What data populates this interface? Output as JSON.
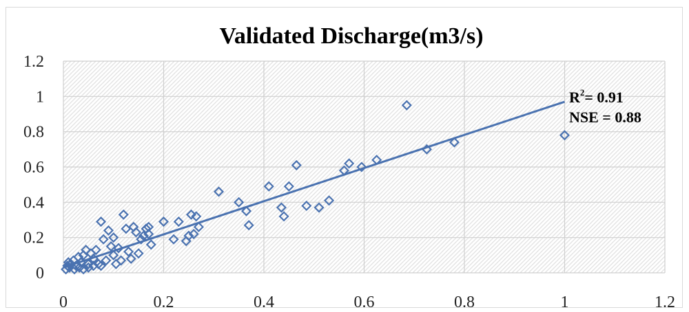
{
  "chart_data": {
    "type": "scatter",
    "title": "Validated Discharge(m3/s)",
    "xlabel": "",
    "ylabel": "",
    "xlim": [
      0,
      1.2
    ],
    "ylim": [
      0,
      1.2
    ],
    "x_ticks": [
      "0",
      "0.2",
      "0.4",
      "0.6",
      "0.8",
      "1",
      "1.2"
    ],
    "y_ticks": [
      "0",
      "0.2",
      "0.4",
      "0.6",
      "0.8",
      "1",
      "1.2"
    ],
    "grid": true,
    "marker": "diamond-open",
    "colors": {
      "series": "#4a72b0",
      "grid": "#cfcfcf"
    },
    "points": [
      [
        0.005,
        0.02
      ],
      [
        0.008,
        0.04
      ],
      [
        0.01,
        0.06
      ],
      [
        0.012,
        0.03
      ],
      [
        0.015,
        0.05
      ],
      [
        0.02,
        0.07
      ],
      [
        0.022,
        0.02
      ],
      [
        0.025,
        0.04
      ],
      [
        0.03,
        0.09
      ],
      [
        0.032,
        0.03
      ],
      [
        0.035,
        0.06
      ],
      [
        0.04,
        0.1
      ],
      [
        0.04,
        0.02
      ],
      [
        0.045,
        0.13
      ],
      [
        0.05,
        0.05
      ],
      [
        0.05,
        0.03
      ],
      [
        0.055,
        0.11
      ],
      [
        0.06,
        0.04
      ],
      [
        0.06,
        0.08
      ],
      [
        0.065,
        0.13
      ],
      [
        0.07,
        0.05
      ],
      [
        0.075,
        0.04
      ],
      [
        0.075,
        0.29
      ],
      [
        0.08,
        0.19
      ],
      [
        0.085,
        0.07
      ],
      [
        0.09,
        0.24
      ],
      [
        0.095,
        0.15
      ],
      [
        0.1,
        0.2
      ],
      [
        0.1,
        0.1
      ],
      [
        0.105,
        0.05
      ],
      [
        0.11,
        0.14
      ],
      [
        0.115,
        0.07
      ],
      [
        0.12,
        0.33
      ],
      [
        0.125,
        0.25
      ],
      [
        0.13,
        0.12
      ],
      [
        0.135,
        0.08
      ],
      [
        0.14,
        0.26
      ],
      [
        0.145,
        0.23
      ],
      [
        0.15,
        0.11
      ],
      [
        0.155,
        0.19
      ],
      [
        0.16,
        0.21
      ],
      [
        0.165,
        0.25
      ],
      [
        0.17,
        0.26
      ],
      [
        0.17,
        0.22
      ],
      [
        0.175,
        0.16
      ],
      [
        0.2,
        0.29
      ],
      [
        0.22,
        0.19
      ],
      [
        0.23,
        0.29
      ],
      [
        0.245,
        0.18
      ],
      [
        0.25,
        0.21
      ],
      [
        0.255,
        0.33
      ],
      [
        0.26,
        0.22
      ],
      [
        0.265,
        0.32
      ],
      [
        0.27,
        0.26
      ],
      [
        0.31,
        0.46
      ],
      [
        0.35,
        0.4
      ],
      [
        0.365,
        0.35
      ],
      [
        0.37,
        0.27
      ],
      [
        0.41,
        0.49
      ],
      [
        0.435,
        0.37
      ],
      [
        0.44,
        0.32
      ],
      [
        0.45,
        0.49
      ],
      [
        0.465,
        0.61
      ],
      [
        0.485,
        0.38
      ],
      [
        0.51,
        0.37
      ],
      [
        0.53,
        0.41
      ],
      [
        0.56,
        0.58
      ],
      [
        0.57,
        0.62
      ],
      [
        0.595,
        0.6
      ],
      [
        0.625,
        0.64
      ],
      [
        0.685,
        0.95
      ],
      [
        0.725,
        0.7
      ],
      [
        0.78,
        0.74
      ],
      [
        1.0,
        0.78
      ]
    ],
    "trendline": {
      "x": [
        0,
        1.0
      ],
      "y": [
        0.03,
        0.97
      ]
    },
    "annotation": {
      "r2_label": "R",
      "r2_sup": "2",
      "r2_value": "= 0.91",
      "nse": "NSE = 0.88"
    }
  }
}
